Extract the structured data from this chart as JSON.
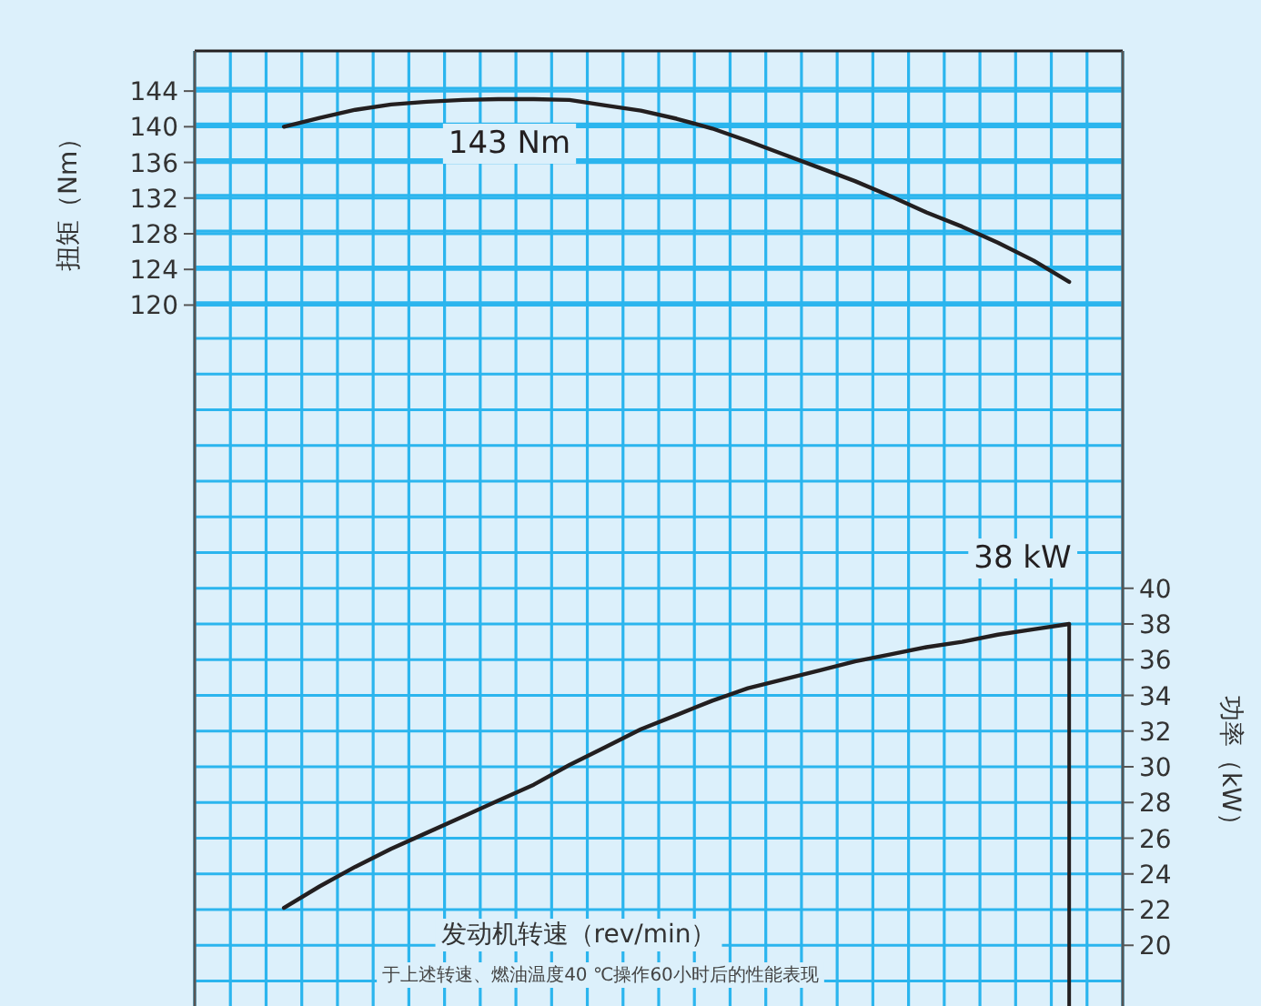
{
  "chart_data": {
    "type": "line",
    "categories": [
      null,
      null,
      null,
      null,
      null,
      null,
      null,
      null,
      null,
      null,
      null,
      null,
      null,
      null,
      null,
      null,
      null,
      null,
      null,
      null,
      null,
      null,
      null,
      null,
      null,
      null
    ],
    "series": [
      {
        "color": "#231f20",
        "values": [
          null,
          null,
          140.0,
          141.0,
          141.9,
          142.5,
          142.8,
          143.0,
          143.1,
          143.1,
          143.0,
          142.4,
          141.8,
          140.9,
          139.8,
          138.4,
          136.9,
          135.4,
          133.9,
          132.2,
          130.4,
          128.8,
          127.0,
          125.0,
          122.6,
          null
        ]
      },
      {
        "color": "#231f20",
        "axis": "y2",
        "values": [
          null,
          null,
          22.1,
          23.3,
          24.4,
          25.4,
          26.3,
          27.2,
          28.1,
          29.0,
          30.1,
          31.1,
          32.1,
          32.9,
          33.7,
          34.4,
          34.9,
          35.4,
          35.9,
          36.3,
          36.7,
          37.0,
          37.4,
          37.7,
          38.0,
          null
        ]
      }
    ],
    "xlabel": "发动机转速（rev/min）",
    "ylabel": "扭矩（Nm）",
    "y2label": "功率（kW）",
    "ylim": [
      41.4,
      148.5
    ],
    "yticks": [
      120,
      124,
      128,
      132,
      136,
      140,
      144
    ],
    "y2lim": [
      16.6,
      70.1
    ],
    "y2ticks": [
      {
        "value": 18,
        "label": null
      },
      20,
      22,
      24,
      26,
      28,
      30,
      32,
      34,
      36,
      38,
      40,
      {
        "value": 42,
        "label": null
      },
      {
        "value": 44,
        "label": null
      },
      {
        "value": 46,
        "label": null
      },
      {
        "value": 48,
        "label": null
      },
      {
        "value": 50,
        "label": null
      },
      {
        "value": 52,
        "label": null
      },
      {
        "value": 54,
        "label": null
      },
      {
        "value": 56,
        "label": null
      },
      {
        "value": 58,
        "label": null
      },
      {
        "value": 60,
        "label": null
      },
      {
        "value": 62,
        "label": null
      },
      {
        "value": 64,
        "label": null
      },
      {
        "value": 66,
        "label": null
      },
      {
        "value": 68,
        "label": null
      }
    ],
    "annotations": [
      "143 Nm",
      "38 kW",
      "于上述转速、燃油温度40 ℃操作60小时后的性能表现"
    ],
    "grid": true,
    "marker": "none",
    "line_style": "solid"
  }
}
